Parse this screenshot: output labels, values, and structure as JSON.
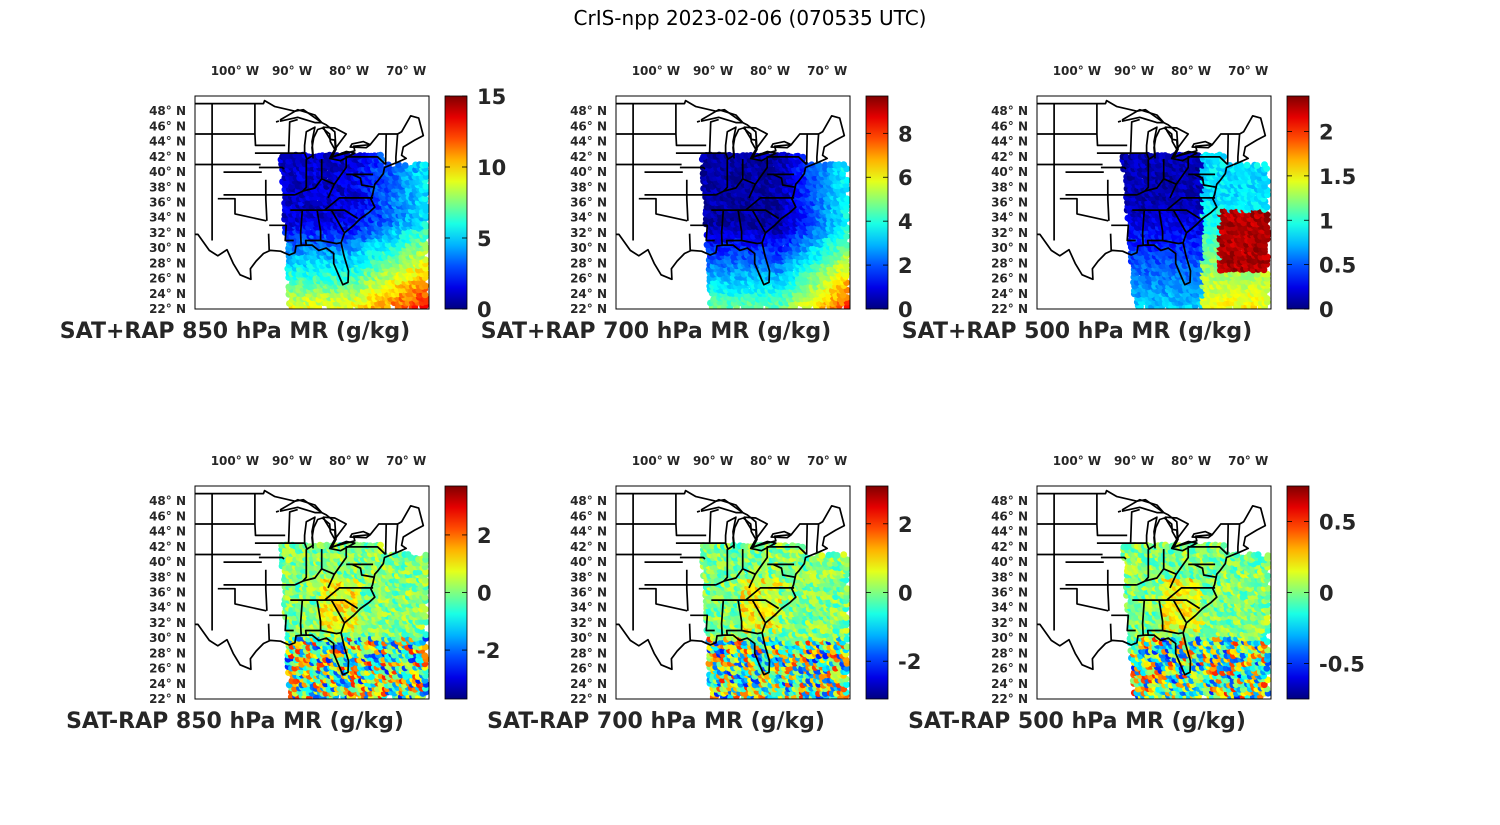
{
  "title": "CrIS-npp 2023-02-06 (070535 UTC)",
  "lon_ticks": [
    "100° W",
    "90° W",
    "80° W",
    "70° W"
  ],
  "lat_ticks": [
    "48° N",
    "46° N",
    "44° N",
    "42° N",
    "40° N",
    "38° N",
    "36° N",
    "34° N",
    "32° N",
    "30° N",
    "28° N",
    "26° N",
    "24° N",
    "22° N"
  ],
  "colormap": "jet",
  "panels": [
    {
      "label": "SAT+RAP 850 hPa MR (g/kg)",
      "cmin": 0,
      "cmax": 15,
      "ticks": [
        {
          "v": 0,
          "t": "0"
        },
        {
          "v": 5,
          "t": "5"
        },
        {
          "v": 10,
          "t": "10"
        },
        {
          "v": 15,
          "t": "15"
        }
      ]
    },
    {
      "label": "SAT+RAP 700 hPa MR (g/kg)",
      "cmin": 0,
      "cmax": 9.7,
      "ticks": [
        {
          "v": 0,
          "t": "0"
        },
        {
          "v": 2,
          "t": "2"
        },
        {
          "v": 4,
          "t": "4"
        },
        {
          "v": 6,
          "t": "6"
        },
        {
          "v": 8,
          "t": "8"
        }
      ]
    },
    {
      "label": "SAT+RAP 500 hPa MR (g/kg)",
      "cmin": 0,
      "cmax": 2.4,
      "ticks": [
        {
          "v": 0,
          "t": "0"
        },
        {
          "v": 0.5,
          "t": "0.5"
        },
        {
          "v": 1,
          "t": "1"
        },
        {
          "v": 1.5,
          "t": "1.5"
        },
        {
          "v": 2,
          "t": "2"
        }
      ]
    },
    {
      "label": "SAT-RAP 850 hPa MR (g/kg)",
      "cmin": -3.7,
      "cmax": 3.7,
      "ticks": [
        {
          "v": -2,
          "t": "-2"
        },
        {
          "v": 0,
          "t": "0"
        },
        {
          "v": 2,
          "t": "2"
        }
      ]
    },
    {
      "label": "SAT-RAP 700 hPa MR (g/kg)",
      "cmin": -3.1,
      "cmax": 3.1,
      "ticks": [
        {
          "v": -2,
          "t": "-2"
        },
        {
          "v": 0,
          "t": "0"
        },
        {
          "v": 2,
          "t": "2"
        }
      ]
    },
    {
      "label": "SAT-RAP 500 hPa MR (g/kg)",
      "cmin": -0.75,
      "cmax": 0.75,
      "ticks": [
        {
          "v": -0.5,
          "t": "-0.5"
        },
        {
          "v": 0,
          "t": "0"
        },
        {
          "v": 0.5,
          "t": "0.5"
        }
      ]
    }
  ]
}
